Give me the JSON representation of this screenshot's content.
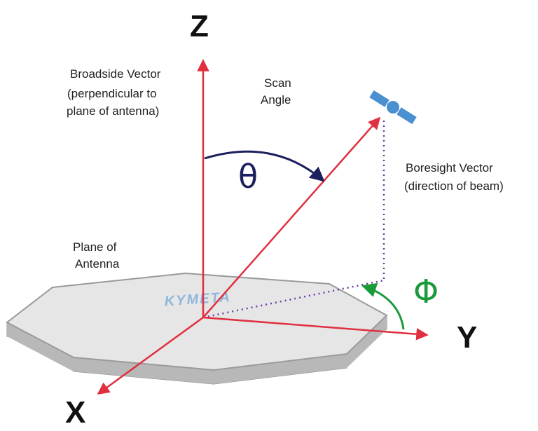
{
  "labels": {
    "z_axis": "Z",
    "y_axis": "Y",
    "x_axis": "X",
    "broadside_line1": "Broadside Vector",
    "broadside_line2": "(perpendicular to",
    "broadside_line3": "plane of antenna)",
    "scan_line1": "Scan",
    "scan_line2": "Angle",
    "boresight_line1": "Boresight Vector",
    "boresight_line2": "(direction of beam)",
    "plane_line1": "Plane of",
    "plane_line2": "Antenna",
    "theta": "θ",
    "phi": "Φ",
    "logo": "KYMETA"
  },
  "colors": {
    "axis_red": "#e03040",
    "theta_navy": "#1c1f5e",
    "phi_green": "#1a9a3a",
    "dotted_purple": "#6a3aa0",
    "plate_top": "#e6e6e6",
    "plate_side": "#a9a9a9",
    "satellite_blue": "#4a8fd0",
    "logo_blue": "#8fb6de"
  },
  "icons": {
    "satellite": "satellite-icon"
  }
}
